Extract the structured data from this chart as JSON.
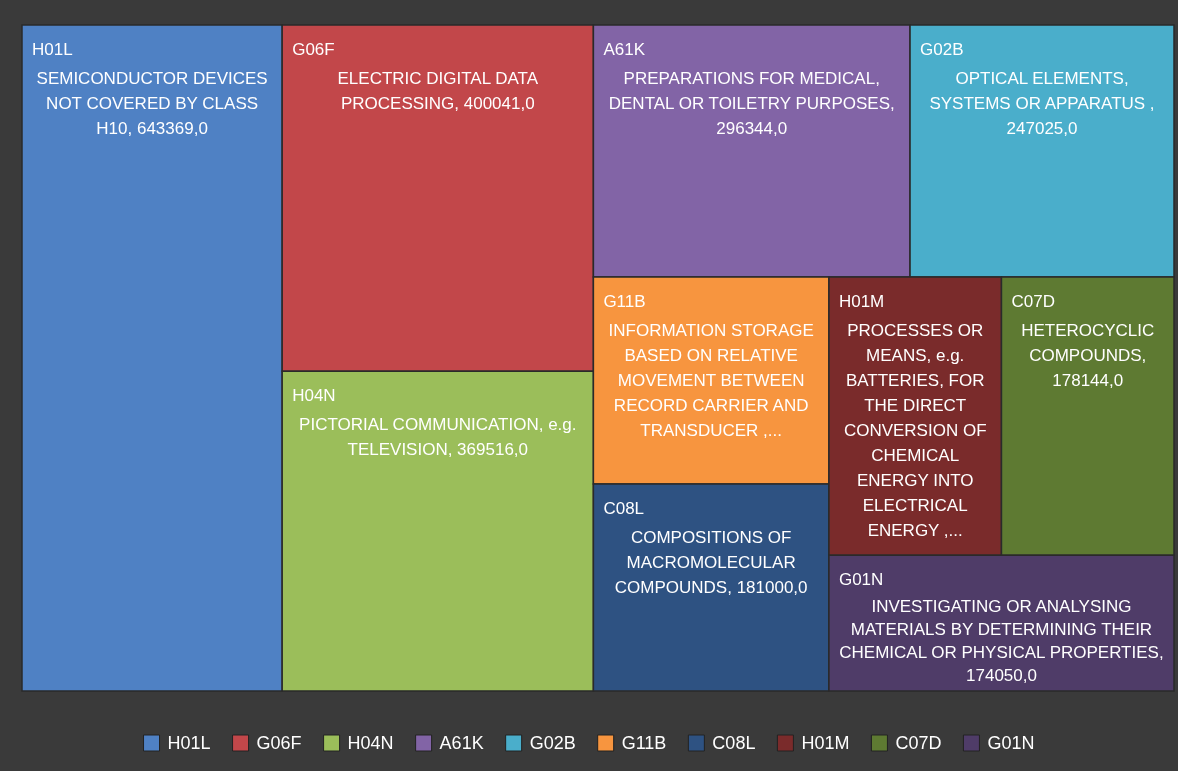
{
  "chart_data": {
    "type": "other",
    "categories": [
      "H01L",
      "G06F",
      "H04N",
      "A61K",
      "G02B",
      "G11B",
      "C08L",
      "H01M",
      "C07D",
      "G01N"
    ],
    "values": [
      643369.0,
      400041.0,
      369516.0,
      296344.0,
      247025.0,
      null,
      181000.0,
      null,
      178144.0,
      174050.0
    ],
    "value_labels": [
      "SEMICONDUCTOR DEVICES NOT COVERED BY CLASS H10, 643369,0",
      "ELECTRIC DIGITAL DATA PROCESSING, 400041,0",
      "PICTORIAL COMMUNICATION, e.g. TELEVISION, 369516,0",
      "PREPARATIONS FOR MEDICAL, DENTAL OR TOILETRY PURPOSES, 296344,0",
      "OPTICAL ELEMENTS, SYSTEMS OR APPARATUS , 247025,0",
      "INFORMATION STORAGE BASED ON RELATIVE MOVEMENT BETWEEN RECORD CARRIER AND TRANSDUCER ,...",
      "COMPOSITIONS OF MACROMOLECULAR COMPOUNDS, 181000,0",
      "PROCESSES OR MEANS, e.g. BATTERIES, FOR THE DIRECT CONVERSION OF CHEMICAL ENERGY INTO ELECTRICAL ENERGY ,...",
      "HETEROCYCLIC COMPOUNDS, 178144,0",
      "INVESTIGATING OR ANALYSING MATERIALS BY DETERMINING THEIR CHEMICAL OR PHYSICAL PROPERTIES, 174050,0"
    ],
    "colors": [
      "#4f81c4",
      "#c2474a",
      "#9bbe5a",
      "#8264a6",
      "#4aaecb",
      "#f7953f",
      "#2e5282",
      "#7a2b2b",
      "#5e7a32",
      "#4f3c68"
    ]
  }
}
